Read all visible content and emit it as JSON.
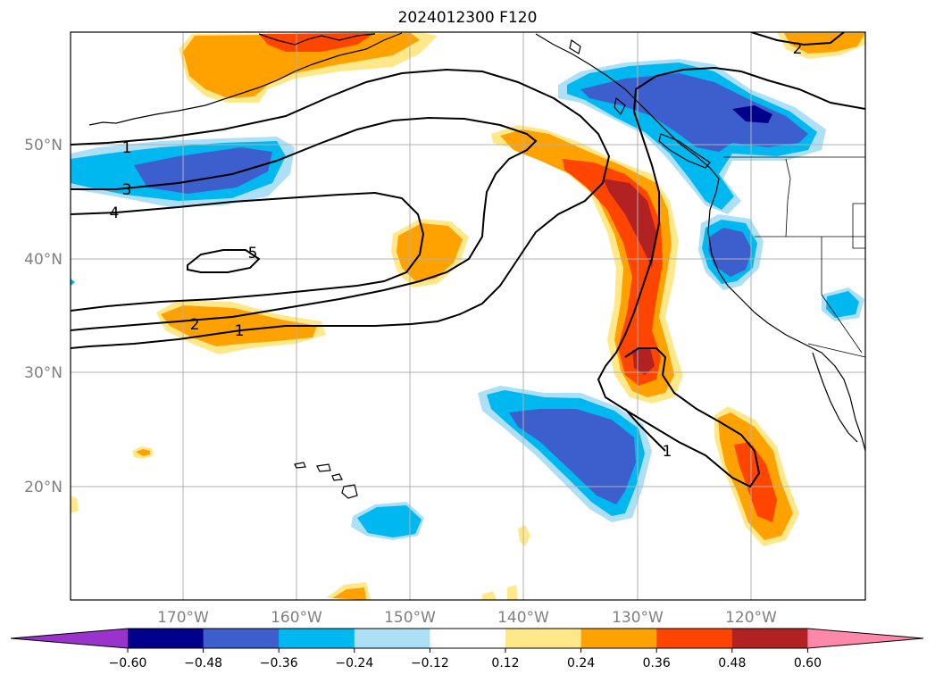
{
  "title": "2024012300 F120",
  "latitude_labels": [
    "50°N",
    "40°N",
    "30°N",
    "20°N"
  ],
  "longitude_labels": [
    "170°W",
    "160°W",
    "150°W",
    "140°W",
    "130°W",
    "120°W"
  ],
  "contour_labels": [
    "1",
    "3",
    "4",
    "5",
    "2",
    "1",
    "2",
    "1"
  ],
  "colorbar": {
    "ticks": [
      "−0.60",
      "−0.48",
      "−0.36",
      "−0.24",
      "−0.12",
      "0.12",
      "0.24",
      "0.36",
      "0.48",
      "0.60"
    ],
    "colors": [
      "#9933cc",
      "#00008b",
      "#3d5fcd",
      "#00b8f0",
      "#ade0f7",
      "#ffffff",
      "#ffe88a",
      "#ffa200",
      "#ff4500",
      "#b22222",
      "#ff88aa"
    ]
  }
}
